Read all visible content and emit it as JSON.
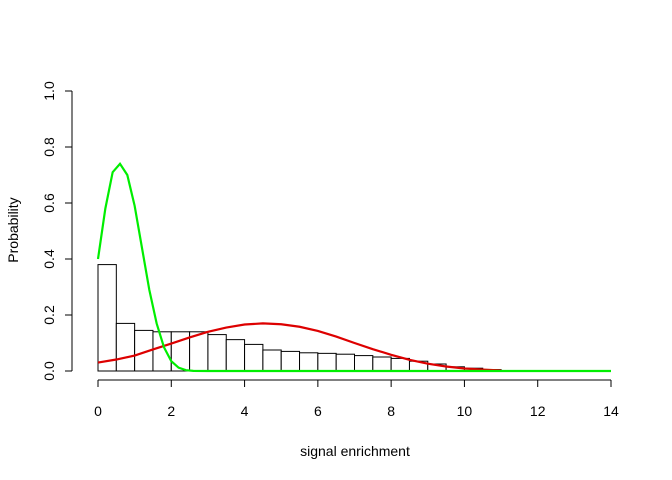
{
  "chart_data": {
    "type": "bar",
    "title": "",
    "xlabel": "signal enrichment",
    "ylabel": "Probability",
    "xlim": [
      0,
      14
    ],
    "ylim": [
      0,
      1
    ],
    "x_ticks": [
      "0",
      "2",
      "4",
      "6",
      "8",
      "10",
      "12",
      "14"
    ],
    "y_ticks": [
      "0.0",
      "0.2",
      "0.4",
      "0.6",
      "0.8",
      "1.0"
    ],
    "grid": false,
    "histogram": {
      "bin_width": 0.5,
      "bin_starts": [
        0,
        0.5,
        1,
        1.5,
        2,
        2.5,
        3,
        3.5,
        4,
        4.5,
        5,
        5.5,
        6,
        6.5,
        7,
        7.5,
        8,
        8.5,
        9,
        9.5,
        10,
        10.5
      ],
      "values": [
        0.38,
        0.17,
        0.145,
        0.14,
        0.14,
        0.14,
        0.13,
        0.112,
        0.095,
        0.075,
        0.07,
        0.065,
        0.063,
        0.06,
        0.055,
        0.05,
        0.045,
        0.035,
        0.025,
        0.015,
        0.01,
        0.005
      ]
    },
    "series": [
      {
        "color": "#dd0000",
        "x": [
          0,
          0.5,
          1,
          1.5,
          2,
          2.5,
          3,
          3.5,
          4,
          4.5,
          5,
          5.5,
          6,
          6.5,
          7,
          7.5,
          8,
          8.5,
          9,
          9.5,
          10,
          10.5,
          11
        ],
        "y": [
          0.03,
          0.041,
          0.055,
          0.077,
          0.098,
          0.12,
          0.14,
          0.155,
          0.166,
          0.17,
          0.167,
          0.158,
          0.143,
          0.123,
          0.1,
          0.078,
          0.058,
          0.04,
          0.026,
          0.016,
          0.009,
          0.005,
          0.002
        ]
      },
      {
        "color": "#00ee00",
        "x": [
          0,
          0.2,
          0.4,
          0.6,
          0.8,
          1.0,
          1.2,
          1.4,
          1.6,
          1.8,
          2.0,
          2.2,
          2.4,
          2.6,
          3,
          4,
          6,
          8,
          10,
          12,
          14
        ],
        "y": [
          0.4,
          0.58,
          0.71,
          0.74,
          0.7,
          0.59,
          0.44,
          0.29,
          0.17,
          0.085,
          0.035,
          0.012,
          0.003,
          0.0005,
          0,
          0,
          0,
          0,
          0,
          0,
          0
        ]
      }
    ]
  }
}
